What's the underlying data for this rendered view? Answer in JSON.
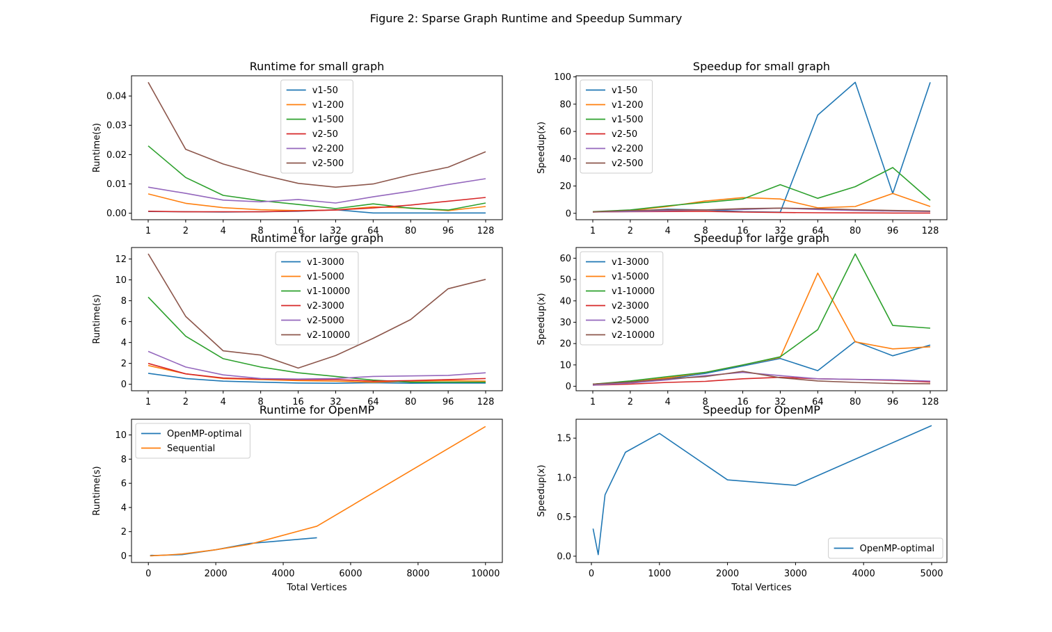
{
  "figure": {
    "title": "Figure 2: Sparse Graph Runtime and Speedup Summary"
  },
  "colors": [
    "#1f77b4",
    "#ff7f0e",
    "#2ca02c",
    "#d62728",
    "#9467bd",
    "#8c564b"
  ],
  "chart_data": [
    {
      "type": "line",
      "title": "Runtime for small graph",
      "xlabel": "",
      "ylabel": "Runtime(s)",
      "x": [
        "1",
        "2",
        "4",
        "8",
        "16",
        "32",
        "64",
        "80",
        "96",
        "128"
      ],
      "x_scale": "categorical",
      "ylim": [
        -0.0022,
        0.0469
      ],
      "yticks": [
        0.0,
        0.01,
        0.02,
        0.03,
        0.04
      ],
      "ytick_labels": [
        "0.00",
        "0.01",
        "0.02",
        "0.03",
        "0.04"
      ],
      "legend_loc": "upper center",
      "series": [
        {
          "name": "v1-50",
          "values": [
            0.0006,
            0.0005,
            0.0004,
            0.0005,
            0.0007,
            0.0012,
            0.0001,
            0.0001,
            0.0001,
            0.0001
          ]
        },
        {
          "name": "v1-200",
          "values": [
            0.0066,
            0.0034,
            0.0019,
            0.0012,
            0.0009,
            0.0011,
            0.0022,
            0.0018,
            0.0009,
            0.0023
          ]
        },
        {
          "name": "v1-500",
          "values": [
            0.023,
            0.0122,
            0.0061,
            0.0043,
            0.003,
            0.0016,
            0.0032,
            0.0017,
            0.0011,
            0.0035
          ]
        },
        {
          "name": "v2-50",
          "values": [
            0.0007,
            0.0005,
            0.0005,
            0.0005,
            0.0008,
            0.0011,
            0.0018,
            0.0028,
            0.0041,
            0.0054
          ]
        },
        {
          "name": "v2-200",
          "values": [
            0.0089,
            0.0068,
            0.0045,
            0.0039,
            0.0047,
            0.0035,
            0.0056,
            0.0075,
            0.0098,
            0.0118
          ]
        },
        {
          "name": "v2-500",
          "values": [
            0.0447,
            0.0218,
            0.0168,
            0.0132,
            0.0102,
            0.0089,
            0.01,
            0.0131,
            0.0157,
            0.021
          ]
        }
      ]
    },
    {
      "type": "line",
      "title": "Speedup for small graph",
      "xlabel": "",
      "ylabel": "Speedup(x)",
      "x": [
        "1",
        "2",
        "4",
        "8",
        "16",
        "32",
        "64",
        "80",
        "96",
        "128"
      ],
      "x_scale": "categorical",
      "ylim": [
        -4.7,
        100.8
      ],
      "yticks": [
        0,
        20,
        40,
        60,
        80,
        100
      ],
      "ytick_labels": [
        "0",
        "20",
        "40",
        "60",
        "80",
        "100"
      ],
      "legend_loc": "upper left",
      "series": [
        {
          "name": "v1-50",
          "values": [
            1.0,
            1.5,
            3.0,
            2.5,
            1.2,
            0.8,
            72.0,
            96.0,
            14.5,
            96.0
          ]
        },
        {
          "name": "v1-200",
          "values": [
            1.0,
            2.0,
            5.0,
            9.0,
            11.5,
            10.5,
            4.0,
            5.0,
            14.5,
            5.0
          ]
        },
        {
          "name": "v1-500",
          "values": [
            1.2,
            2.5,
            5.5,
            8.0,
            10.5,
            21.0,
            11.0,
            19.5,
            33.5,
            9.5
          ]
        },
        {
          "name": "v2-50",
          "values": [
            1.0,
            1.2,
            1.3,
            1.4,
            0.9,
            0.6,
            0.4,
            0.3,
            0.2,
            0.2
          ]
        },
        {
          "name": "v2-200",
          "values": [
            1.0,
            1.3,
            1.9,
            2.5,
            2.8,
            3.8,
            2.8,
            2.1,
            1.6,
            1.3
          ]
        },
        {
          "name": "v2-500",
          "values": [
            1.0,
            2.0,
            2.6,
            2.5,
            3.4,
            3.8,
            3.4,
            2.6,
            2.1,
            1.6
          ]
        }
      ]
    },
    {
      "type": "line",
      "title": "Runtime for large graph",
      "xlabel": "",
      "ylabel": "Runtime(s)",
      "x": [
        "1",
        "2",
        "4",
        "8",
        "16",
        "32",
        "64",
        "80",
        "96",
        "128"
      ],
      "x_scale": "categorical",
      "ylim": [
        -0.62,
        13.1
      ],
      "yticks": [
        0,
        2,
        4,
        6,
        8,
        10,
        12
      ],
      "ytick_labels": [
        "0",
        "2",
        "4",
        "6",
        "8",
        "10",
        "12"
      ],
      "legend_loc": "upper center",
      "series": [
        {
          "name": "v1-3000",
          "values": [
            1.05,
            0.55,
            0.3,
            0.2,
            0.12,
            0.1,
            0.15,
            0.1,
            0.12,
            0.11
          ]
        },
        {
          "name": "v1-5000",
          "values": [
            1.8,
            1.0,
            0.55,
            0.45,
            0.35,
            0.3,
            0.2,
            0.3,
            0.35,
            0.3
          ]
        },
        {
          "name": "v1-10000",
          "values": [
            8.35,
            4.6,
            2.45,
            1.65,
            1.1,
            0.75,
            0.4,
            0.2,
            0.2,
            0.2
          ]
        },
        {
          "name": "v2-3000",
          "values": [
            2.0,
            1.0,
            0.6,
            0.5,
            0.45,
            0.45,
            0.3,
            0.35,
            0.45,
            0.55
          ]
        },
        {
          "name": "v2-5000",
          "values": [
            3.15,
            1.65,
            0.9,
            0.55,
            0.5,
            0.55,
            0.75,
            0.8,
            0.85,
            1.1
          ]
        },
        {
          "name": "v2-10000",
          "values": [
            12.5,
            6.5,
            3.2,
            2.8,
            1.55,
            2.75,
            4.4,
            6.2,
            9.15,
            10.05
          ]
        }
      ]
    },
    {
      "type": "line",
      "title": "Speedup for large graph",
      "xlabel": "",
      "ylabel": "Speedup(x)",
      "x": [
        "1",
        "2",
        "4",
        "8",
        "16",
        "32",
        "64",
        "80",
        "96",
        "128"
      ],
      "x_scale": "categorical",
      "ylim": [
        -2.1,
        65.0
      ],
      "yticks": [
        0,
        10,
        20,
        30,
        40,
        50,
        60
      ],
      "ytick_labels": [
        "0",
        "10",
        "20",
        "30",
        "40",
        "50",
        "60"
      ],
      "legend_loc": "upper left",
      "series": [
        {
          "name": "v1-3000",
          "values": [
            1.0,
            2.0,
            3.5,
            6.0,
            9.5,
            13.0,
            7.3,
            21.0,
            14.3,
            19.3
          ]
        },
        {
          "name": "v1-5000",
          "values": [
            1.0,
            2.0,
            4.0,
            6.5,
            10.0,
            13.5,
            53.0,
            20.8,
            17.5,
            18.5
          ]
        },
        {
          "name": "v1-10000",
          "values": [
            1.0,
            2.5,
            4.5,
            6.5,
            10.0,
            13.8,
            26.5,
            62.0,
            28.5,
            27.2
          ]
        },
        {
          "name": "v2-3000",
          "values": [
            0.5,
            1.0,
            1.8,
            2.3,
            3.5,
            4.2,
            3.5,
            3.2,
            2.8,
            2.0
          ]
        },
        {
          "name": "v2-5000",
          "values": [
            0.5,
            1.5,
            3.0,
            5.0,
            6.5,
            5.0,
            3.5,
            3.2,
            3.0,
            2.4
          ]
        },
        {
          "name": "v2-10000",
          "values": [
            1.0,
            2.0,
            3.5,
            4.5,
            7.0,
            4.0,
            2.5,
            1.8,
            1.3,
            1.2
          ]
        }
      ]
    },
    {
      "type": "line",
      "title": "Runtime for OpenMP",
      "xlabel": "Total Vertices",
      "ylabel": "Runtime(s)",
      "x_scale": "linear",
      "xlim": [
        -500,
        10500
      ],
      "xticks": [
        0,
        2000,
        4000,
        6000,
        8000,
        10000
      ],
      "xtick_labels": [
        "0",
        "2000",
        "4000",
        "6000",
        "8000",
        "10000"
      ],
      "ylim": [
        -0.55,
        11.3
      ],
      "yticks": [
        0,
        2,
        4,
        6,
        8,
        10
      ],
      "ytick_labels": [
        "0",
        "2",
        "4",
        "6",
        "8",
        "10"
      ],
      "legend_loc": "upper left",
      "series": [
        {
          "name": "OpenMP-optimal",
          "x": [
            50,
            100,
            200,
            500,
            1000,
            2000,
            3000,
            5000
          ],
          "y": [
            0.02,
            0.04,
            0.03,
            0.06,
            0.1,
            0.5,
            1.02,
            1.5
          ]
        },
        {
          "name": "Sequential",
          "x": [
            50,
            100,
            200,
            500,
            1000,
            2000,
            3000,
            5000,
            10000
          ],
          "y": [
            0.0,
            0.0,
            0.02,
            0.06,
            0.15,
            0.5,
            0.95,
            2.45,
            10.7
          ]
        }
      ]
    },
    {
      "type": "line",
      "title": "Speedup for OpenMP",
      "xlabel": "Total Vertices",
      "ylabel": "Speedup(x)",
      "x_scale": "linear",
      "xlim": [
        -225,
        5225
      ],
      "xticks": [
        0,
        1000,
        2000,
        3000,
        4000,
        5000
      ],
      "xtick_labels": [
        "0",
        "1000",
        "2000",
        "3000",
        "4000",
        "5000"
      ],
      "ylim": [
        -0.08,
        1.74
      ],
      "yticks": [
        0.0,
        0.5,
        1.0,
        1.5
      ],
      "ytick_labels": [
        "0.0",
        "0.5",
        "1.0",
        "1.5"
      ],
      "legend_loc": "lower right",
      "series": [
        {
          "name": "OpenMP-optimal",
          "x": [
            25,
            100,
            200,
            500,
            1000,
            2000,
            3000,
            5000
          ],
          "y": [
            0.35,
            0.02,
            0.78,
            1.32,
            1.56,
            0.97,
            0.9,
            1.66
          ]
        }
      ]
    }
  ]
}
